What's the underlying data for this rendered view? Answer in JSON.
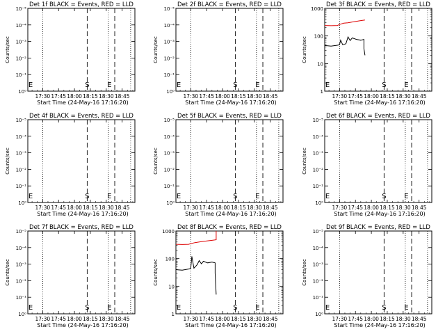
{
  "figure": {
    "panels": [
      {
        "title": "Det 1f BLACK = Events, RED = LLD",
        "xlabel": "Start Time (24-May-16 17:16:20)",
        "ylabel": "Counts/sec",
        "ylim_labels": [
          "10⁰",
          "10⁻¹",
          "10⁻²",
          "10⁻³",
          "10⁻⁴",
          "10⁻⁵"
        ],
        "markers": {
          "e1": "E",
          "s": "S",
          "e2": "E"
        }
      },
      {
        "title": "Det 2f BLACK = Events, RED = LLD",
        "xlabel": "Start Time (24-May-16 17:16:20)",
        "ylabel": "Counts/sec",
        "ylim_labels": [
          "10⁰",
          "10⁻¹",
          "10⁻²",
          "10⁻³",
          "10⁻⁴",
          "10⁻⁵"
        ],
        "markers": {
          "e1": "E",
          "s": "S",
          "e2": "E"
        }
      },
      {
        "title": "Det 3f BLACK = Events, RED = LLD",
        "xlabel": "Start Time (24-May-16 17:16:20)",
        "ylabel": "Counts/sec",
        "ylim_labels": [
          "1",
          "10",
          "100",
          "1000"
        ],
        "markers": {
          "e1": "E",
          "s": "S",
          "e2": "E"
        }
      },
      {
        "title": "Det 4f BLACK = Events, RED = LLD",
        "xlabel": "Start Time (24-May-16 17:16:20)",
        "ylabel": "Counts/sec",
        "ylim_labels": [
          "10⁰",
          "10⁻¹",
          "10⁻²",
          "10⁻³",
          "10⁻⁴",
          "10⁻⁵"
        ],
        "markers": {
          "e1": "E",
          "s": "S",
          "e2": "E"
        }
      },
      {
        "title": "Det 5f BLACK = Events, RED = LLD",
        "xlabel": "Start Time (24-May-16 17:16:20)",
        "ylabel": "Counts/sec",
        "ylim_labels": [
          "10⁰",
          "10⁻¹",
          "10⁻²",
          "10⁻³",
          "10⁻⁴",
          "10⁻⁵"
        ],
        "markers": {
          "e1": "E",
          "s": "S",
          "e2": "E"
        }
      },
      {
        "title": "Det 6f BLACK = Events, RED = LLD",
        "xlabel": "Start Time (24-May-16 17:16:20)",
        "ylabel": "Counts/sec",
        "ylim_labels": [
          "10⁰",
          "10⁻¹",
          "10⁻²",
          "10⁻³",
          "10⁻⁴",
          "10⁻⁵"
        ],
        "markers": {
          "e1": "E",
          "s": "S",
          "e2": "E"
        }
      },
      {
        "title": "Det 7f BLACK = Events, RED = LLD",
        "xlabel": "Start Time (24-May-16 17:16:20)",
        "ylabel": "Counts/sec",
        "ylim_labels": [
          "10⁰",
          "10⁻¹",
          "10⁻²",
          "10⁻³",
          "10⁻⁴",
          "10⁻⁵"
        ],
        "markers": {
          "e1": "E",
          "s": "S",
          "e2": "E"
        }
      },
      {
        "title": "Det 8f BLACK = Events, RED = LLD",
        "xlabel": "Start Time (24-May-16 17:16:20)",
        "ylabel": "Counts/sec",
        "ylim_labels": [
          "1",
          "10",
          "100",
          "1000"
        ],
        "markers": {
          "e1": "E",
          "s": "S",
          "e2": "E"
        }
      },
      {
        "title": "Det 9f BLACK = Events, RED = LLD",
        "xlabel": "Start Time (24-May-16 17:16:20)",
        "ylabel": "Counts/sec",
        "ylim_labels": [
          "10⁰",
          "10⁻¹",
          "10⁻²",
          "10⁻³",
          "10⁻⁴",
          "10⁻⁵"
        ],
        "markers": {
          "e1": "E",
          "s": "S",
          "e2": "E"
        }
      }
    ]
  },
  "chart_data": [
    {
      "type": "line",
      "title": "Det 1f BLACK = Events, RED = LLD",
      "xlabel": "Start Time (24-May-16 17:16:20)",
      "ylabel": "Counts/sec",
      "x_ticks": [
        "17:30",
        "17:45",
        "18:00",
        "18:15",
        "18:30",
        "18:45"
      ],
      "xlim": [
        "17:16",
        "18:57"
      ],
      "y_scale": "log",
      "ylim": [
        1e-06,
        0.1
      ],
      "y_ticks": [
        "10⁰",
        "10⁻¹",
        "10⁻²",
        "10⁻³",
        "10⁻⁴",
        "10⁻⁵"
      ],
      "series": [],
      "vlines": {
        "dotted": [
          "17:30",
          "18:32",
          "18:53"
        ],
        "dashed": [
          "18:12",
          "18:38"
        ]
      },
      "markers": [
        {
          "label": "E",
          "x": "17:16"
        },
        {
          "label": "S",
          "x": "18:12"
        },
        {
          "label": "E",
          "x": "18:33"
        }
      ]
    },
    {
      "type": "line",
      "title": "Det 2f BLACK = Events, RED = LLD",
      "xlabel": "Start Time (24-May-16 17:16:20)",
      "ylabel": "Counts/sec",
      "x_ticks": [
        "17:30",
        "17:45",
        "18:00",
        "18:15",
        "18:30",
        "18:45"
      ],
      "xlim": [
        "17:16",
        "18:57"
      ],
      "y_scale": "log",
      "ylim": [
        1e-06,
        0.1
      ],
      "y_ticks": [
        "10⁰",
        "10⁻¹",
        "10⁻²",
        "10⁻³",
        "10⁻⁴",
        "10⁻⁵"
      ],
      "series": [],
      "vlines": {
        "dotted": [
          "17:30",
          "18:32",
          "18:53"
        ],
        "dashed": [
          "18:12",
          "18:38"
        ]
      },
      "markers": [
        {
          "label": "E",
          "x": "17:16"
        },
        {
          "label": "S",
          "x": "18:12"
        },
        {
          "label": "E",
          "x": "18:33"
        }
      ]
    },
    {
      "type": "line",
      "title": "Det 3f BLACK = Events, RED = LLD",
      "xlabel": "Start Time (24-May-16 17:16:20)",
      "ylabel": "Counts/sec",
      "x_ticks": [
        "17:30",
        "17:45",
        "18:00",
        "18:15",
        "18:30",
        "18:45"
      ],
      "xlim": [
        "17:16",
        "18:57"
      ],
      "y_scale": "log",
      "ylim": [
        1,
        1000
      ],
      "y_ticks": [
        "1",
        "10",
        "100",
        "1000"
      ],
      "series": [
        {
          "color": "#dd0000",
          "x": [
            "17:16",
            "17:22",
            "17:28",
            "17:30",
            "17:34",
            "17:38",
            "17:42",
            "17:46",
            "17:50",
            "17:54"
          ],
          "y": [
            240,
            235,
            240,
            260,
            290,
            300,
            320,
            340,
            360,
            380
          ]
        },
        {
          "color": "#000000",
          "x": [
            "17:16",
            "17:22",
            "17:28",
            "17:30",
            "17:31",
            "17:33",
            "17:36",
            "17:38",
            "17:40",
            "17:42",
            "17:46",
            "17:50",
            "17:53",
            "17:53",
            "17:54"
          ],
          "y": [
            45,
            43,
            46,
            48,
            70,
            48,
            52,
            92,
            68,
            85,
            75,
            70,
            75,
            35,
            20
          ]
        }
      ],
      "vlines": {
        "dotted": [
          "17:30",
          "18:32",
          "18:53"
        ],
        "dashed": [
          "18:12",
          "18:38"
        ]
      },
      "markers": [
        {
          "label": "E",
          "x": "17:16"
        },
        {
          "label": "S",
          "x": "18:12"
        },
        {
          "label": "E",
          "x": "18:33"
        }
      ]
    },
    {
      "type": "line",
      "title": "Det 4f BLACK = Events, RED = LLD",
      "xlabel": "Start Time (24-May-16 17:16:20)",
      "ylabel": "Counts/sec",
      "x_ticks": [
        "17:30",
        "17:45",
        "18:00",
        "18:15",
        "18:30",
        "18:45"
      ],
      "xlim": [
        "17:16",
        "18:57"
      ],
      "y_scale": "log",
      "ylim": [
        1e-06,
        0.1
      ],
      "y_ticks": [
        "10⁰",
        "10⁻¹",
        "10⁻²",
        "10⁻³",
        "10⁻⁴",
        "10⁻⁵"
      ],
      "series": [],
      "vlines": {
        "dotted": [
          "17:30",
          "18:32",
          "18:53"
        ],
        "dashed": [
          "18:12",
          "18:38"
        ]
      },
      "markers": [
        {
          "label": "E",
          "x": "17:16"
        },
        {
          "label": "S",
          "x": "18:12"
        },
        {
          "label": "E",
          "x": "18:33"
        }
      ]
    },
    {
      "type": "line",
      "title": "Det 5f BLACK = Events, RED = LLD",
      "xlabel": "Start Time (24-May-16 17:16:20)",
      "ylabel": "Counts/sec",
      "x_ticks": [
        "17:30",
        "17:45",
        "18:00",
        "18:15",
        "18:30",
        "18:45"
      ],
      "xlim": [
        "17:16",
        "18:57"
      ],
      "y_scale": "log",
      "ylim": [
        1e-06,
        0.1
      ],
      "y_ticks": [
        "10⁰",
        "10⁻¹",
        "10⁻²",
        "10⁻³",
        "10⁻⁴",
        "10⁻⁵"
      ],
      "series": [],
      "vlines": {
        "dotted": [
          "17:30",
          "18:32",
          "18:53"
        ],
        "dashed": [
          "18:12",
          "18:38"
        ]
      },
      "markers": [
        {
          "label": "E",
          "x": "17:16"
        },
        {
          "label": "S",
          "x": "18:12"
        },
        {
          "label": "E",
          "x": "18:33"
        }
      ]
    },
    {
      "type": "line",
      "title": "Det 6f BLACK = Events, RED = LLD",
      "xlabel": "Start Time (24-May-16 17:16:20)",
      "ylabel": "Counts/sec",
      "x_ticks": [
        "17:30",
        "17:45",
        "18:00",
        "18:15",
        "18:30",
        "18:45"
      ],
      "xlim": [
        "17:16",
        "18:57"
      ],
      "y_scale": "log",
      "ylim": [
        1e-06,
        0.1
      ],
      "y_ticks": [
        "10⁰",
        "10⁻¹",
        "10⁻²",
        "10⁻³",
        "10⁻⁴",
        "10⁻⁵"
      ],
      "series": [],
      "vlines": {
        "dotted": [
          "17:30",
          "18:32",
          "18:53"
        ],
        "dashed": [
          "18:12",
          "18:38"
        ]
      },
      "markers": [
        {
          "label": "E",
          "x": "17:16"
        },
        {
          "label": "S",
          "x": "18:12"
        },
        {
          "label": "E",
          "x": "18:33"
        }
      ]
    },
    {
      "type": "line",
      "title": "Det 7f BLACK = Events, RED = LLD",
      "xlabel": "Start Time (24-May-16 17:16:20)",
      "ylabel": "Counts/sec",
      "x_ticks": [
        "17:30",
        "17:45",
        "18:00",
        "18:15",
        "18:30",
        "18:45"
      ],
      "xlim": [
        "17:16",
        "18:57"
      ],
      "y_scale": "log",
      "ylim": [
        1e-06,
        0.1
      ],
      "y_ticks": [
        "10⁰",
        "10⁻¹",
        "10⁻²",
        "10⁻³",
        "10⁻⁴",
        "10⁻⁵"
      ],
      "series": [],
      "vlines": {
        "dotted": [
          "17:30",
          "18:32",
          "18:53"
        ],
        "dashed": [
          "18:12",
          "18:38"
        ]
      },
      "markers": [
        {
          "label": "E",
          "x": "17:16"
        },
        {
          "label": "S",
          "x": "18:12"
        },
        {
          "label": "E",
          "x": "18:33"
        }
      ]
    },
    {
      "type": "line",
      "title": "Det 8f BLACK = Events, RED = LLD",
      "xlabel": "Start Time (24-May-16 17:16:20)",
      "ylabel": "Counts/sec",
      "x_ticks": [
        "17:30",
        "17:45",
        "18:00",
        "18:15",
        "18:30",
        "18:45"
      ],
      "xlim": [
        "17:16",
        "18:57"
      ],
      "y_scale": "log",
      "ylim": [
        1,
        1000
      ],
      "y_ticks": [
        "1",
        "10",
        "100",
        "1000"
      ],
      "series": [
        {
          "color": "#dd0000",
          "x": [
            "17:16",
            "17:22",
            "17:28",
            "17:30",
            "17:34",
            "17:38",
            "17:42",
            "17:46",
            "17:50",
            "17:54",
            "17:54"
          ],
          "y": [
            330,
            325,
            330,
            350,
            380,
            400,
            420,
            440,
            460,
            480,
            1000
          ]
        },
        {
          "color": "#000000",
          "x": [
            "17:16",
            "17:22",
            "17:28",
            "17:30",
            "17:31",
            "17:33",
            "17:36",
            "17:38",
            "17:40",
            "17:42",
            "17:46",
            "17:50",
            "17:53",
            "17:53",
            "17:54"
          ],
          "y": [
            40,
            38,
            42,
            44,
            120,
            45,
            60,
            85,
            65,
            80,
            70,
            75,
            70,
            30,
            5
          ]
        }
      ],
      "vlines": {
        "dotted": [
          "17:30",
          "18:32",
          "18:53"
        ],
        "dashed": [
          "18:12",
          "18:38"
        ]
      },
      "markers": [
        {
          "label": "E",
          "x": "17:16"
        },
        {
          "label": "S",
          "x": "18:12"
        },
        {
          "label": "E",
          "x": "18:33"
        }
      ]
    },
    {
      "type": "line",
      "title": "Det 9f BLACK = Events, RED = LLD",
      "xlabel": "Start Time (24-May-16 17:16:20)",
      "ylabel": "Counts/sec",
      "x_ticks": [
        "17:30",
        "17:45",
        "18:00",
        "18:15",
        "18:30",
        "18:45"
      ],
      "xlim": [
        "17:16",
        "18:57"
      ],
      "y_scale": "log",
      "ylim": [
        1e-06,
        0.1
      ],
      "y_ticks": [
        "10⁰",
        "10⁻¹",
        "10⁻²",
        "10⁻³",
        "10⁻⁴",
        "10⁻⁵"
      ],
      "series": [],
      "vlines": {
        "dotted": [
          "17:30",
          "18:32",
          "18:53"
        ],
        "dashed": [
          "18:12",
          "18:38"
        ]
      },
      "markers": [
        {
          "label": "E",
          "x": "17:16"
        },
        {
          "label": "S",
          "x": "18:12"
        },
        {
          "label": "E",
          "x": "18:33"
        }
      ]
    }
  ]
}
